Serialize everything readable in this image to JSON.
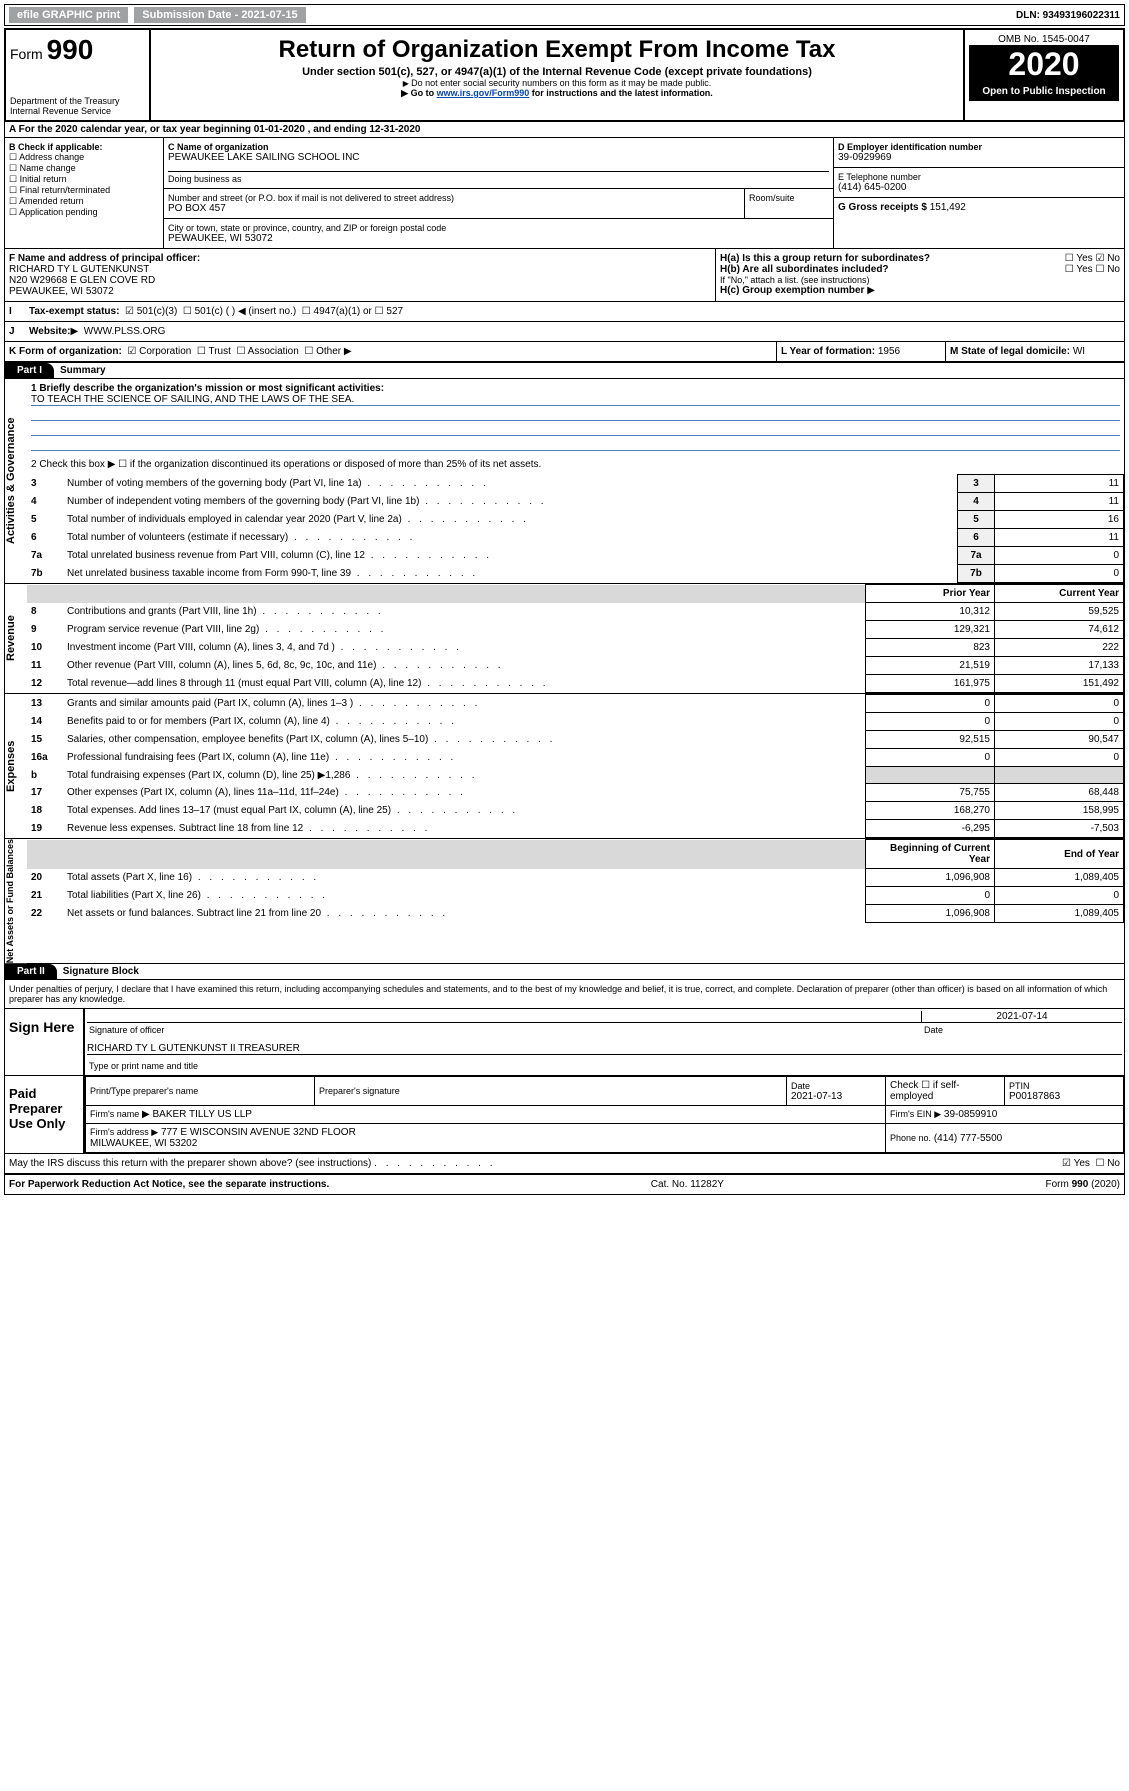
{
  "topbar": {
    "efile": "efile GRAPHIC print",
    "submission": "Submission Date - 2021-07-15",
    "dln": "DLN: 93493196022311"
  },
  "header": {
    "form_label": "Form",
    "form_num": "990",
    "dept": "Department of the Treasury\nInternal Revenue Service",
    "title": "Return of Organization Exempt From Income Tax",
    "subtitle": "Under section 501(c), 527, or 4947(a)(1) of the Internal Revenue Code (except private foundations)",
    "note1": "Do not enter social security numbers on this form as it may be made public.",
    "note2_pre": "Go to ",
    "note2_link": "www.irs.gov/Form990",
    "note2_post": " for instructions and the latest information.",
    "omb": "OMB No. 1545-0047",
    "year": "2020",
    "open": "Open to Public Inspection"
  },
  "secA": "For the 2020 calendar year, or tax year beginning 01-01-2020    , and ending 12-31-2020",
  "colB": {
    "label": "B Check if applicable:",
    "items": [
      "Address change",
      "Name change",
      "Initial return",
      "Final return/terminated",
      "Amended return",
      "Application pending"
    ]
  },
  "colC": {
    "name_lbl": "C Name of organization",
    "name": "PEWAUKEE LAKE SAILING SCHOOL INC",
    "dba_lbl": "Doing business as",
    "addr_lbl": "Number and street (or P.O. box if mail is not delivered to street address)",
    "room_lbl": "Room/suite",
    "addr": "PO BOX 457",
    "city_lbl": "City or town, state or province, country, and ZIP or foreign postal code",
    "city": "PEWAUKEE, WI  53072"
  },
  "colD": {
    "lbl": "D Employer identification number",
    "val": "39-0929969"
  },
  "colE": {
    "lbl": "E Telephone number",
    "val": "(414) 645-0200"
  },
  "colG": {
    "lbl": "G Gross receipts $",
    "val": "151,492"
  },
  "secF": {
    "lbl": "F  Name and address of principal officer:",
    "name": "RICHARD TY L GUTENKUNST",
    "addr1": "N20 W29668 E GLEN COVE RD",
    "addr2": "PEWAUKEE, WI  53072"
  },
  "secH": {
    "a": "H(a)  Is this a group return for subordinates?",
    "a_yes": "Yes",
    "a_no": "No",
    "b": "H(b)  Are all subordinates included?",
    "b_note": "If \"No,\" attach a list. (see instructions)",
    "c": "H(c)  Group exemption number"
  },
  "secI": {
    "lbl": "Tax-exempt status:",
    "opts": [
      "501(c)(3)",
      "501(c) (  ) ◀ (insert no.)",
      "4947(a)(1) or",
      "527"
    ]
  },
  "secJ": {
    "lbl": "Website:",
    "val": "WWW.PLSS.ORG"
  },
  "secK": {
    "lbl": "K Form of organization:",
    "opts": [
      "Corporation",
      "Trust",
      "Association",
      "Other"
    ]
  },
  "secL": {
    "lbl": "L Year of formation:",
    "val": "1956"
  },
  "secM": {
    "lbl": "M State of legal domicile:",
    "val": "WI"
  },
  "part1": {
    "hdr": "Part I",
    "title": "Summary",
    "q1_lbl": "1  Briefly describe the organization's mission or most significant activities:",
    "q1_val": "TO TEACH THE SCIENCE OF SAILING, AND THE LAWS OF THE SEA.",
    "q2": "2   Check this box ▶ ☐  if the organization discontinued its operations or disposed of more than 25% of its net assets.",
    "rows_top": [
      {
        "n": "3",
        "t": "Number of voting members of the governing body (Part VI, line 1a)",
        "v": "11"
      },
      {
        "n": "4",
        "t": "Number of independent voting members of the governing body (Part VI, line 1b)",
        "v": "11"
      },
      {
        "n": "5",
        "t": "Total number of individuals employed in calendar year 2020 (Part V, line 2a)",
        "v": "16"
      },
      {
        "n": "6",
        "t": "Total number of volunteers (estimate if necessary)",
        "v": "11"
      },
      {
        "n": "7a",
        "t": "Total unrelated business revenue from Part VIII, column (C), line 12",
        "v": "0"
      },
      {
        "n": "7b",
        "t": "Net unrelated business taxable income from Form 990-T, line 39",
        "v": "0"
      }
    ],
    "col_prior": "Prior Year",
    "col_curr": "Current Year",
    "rev": [
      {
        "n": "8",
        "t": "Contributions and grants (Part VIII, line 1h)",
        "p": "10,312",
        "c": "59,525"
      },
      {
        "n": "9",
        "t": "Program service revenue (Part VIII, line 2g)",
        "p": "129,321",
        "c": "74,612"
      },
      {
        "n": "10",
        "t": "Investment income (Part VIII, column (A), lines 3, 4, and 7d )",
        "p": "823",
        "c": "222"
      },
      {
        "n": "11",
        "t": "Other revenue (Part VIII, column (A), lines 5, 6d, 8c, 9c, 10c, and 11e)",
        "p": "21,519",
        "c": "17,133"
      },
      {
        "n": "12",
        "t": "Total revenue—add lines 8 through 11 (must equal Part VIII, column (A), line 12)",
        "p": "161,975",
        "c": "151,492"
      }
    ],
    "exp": [
      {
        "n": "13",
        "t": "Grants and similar amounts paid (Part IX, column (A), lines 1–3 )",
        "p": "0",
        "c": "0"
      },
      {
        "n": "14",
        "t": "Benefits paid to or for members (Part IX, column (A), line 4)",
        "p": "0",
        "c": "0"
      },
      {
        "n": "15",
        "t": "Salaries, other compensation, employee benefits (Part IX, column (A), lines 5–10)",
        "p": "92,515",
        "c": "90,547"
      },
      {
        "n": "16a",
        "t": "Professional fundraising fees (Part IX, column (A), line 11e)",
        "p": "0",
        "c": "0"
      },
      {
        "n": "b",
        "t": "Total fundraising expenses (Part IX, column (D), line 25) ▶1,286",
        "p": "__shade__",
        "c": "__shade__"
      },
      {
        "n": "17",
        "t": "Other expenses (Part IX, column (A), lines 11a–11d, 11f–24e)",
        "p": "75,755",
        "c": "68,448"
      },
      {
        "n": "18",
        "t": "Total expenses. Add lines 13–17 (must equal Part IX, column (A), line 25)",
        "p": "168,270",
        "c": "158,995"
      },
      {
        "n": "19",
        "t": "Revenue less expenses. Subtract line 18 from line 12",
        "p": "-6,295",
        "c": "-7,503"
      }
    ],
    "col_beg": "Beginning of Current Year",
    "col_end": "End of Year",
    "net": [
      {
        "n": "20",
        "t": "Total assets (Part X, line 16)",
        "p": "1,096,908",
        "c": "1,089,405"
      },
      {
        "n": "21",
        "t": "Total liabilities (Part X, line 26)",
        "p": "0",
        "c": "0"
      },
      {
        "n": "22",
        "t": "Net assets or fund balances. Subtract line 21 from line 20",
        "p": "1,096,908",
        "c": "1,089,405"
      }
    ],
    "tabs": [
      "Activities & Governance",
      "Revenue",
      "Expenses",
      "Net Assets or Fund Balances"
    ]
  },
  "part2": {
    "hdr": "Part II",
    "title": "Signature Block",
    "decl": "Under penalties of perjury, I declare that I have examined this return, including accompanying schedules and statements, and to the best of my knowledge and belief, it is true, correct, and complete. Declaration of preparer (other than officer) is based on all information of which preparer has any knowledge.",
    "sign_here": "Sign Here",
    "sig_date": "2021-07-14",
    "sig_lbl": "Signature of officer",
    "date_lbl": "Date",
    "officer": "RICHARD TY L GUTENKUNST II  TREASURER",
    "officer_lbl": "Type or print name and title",
    "paid": "Paid Preparer Use Only",
    "prep_name_lbl": "Print/Type preparer's name",
    "prep_sig_lbl": "Preparer's signature",
    "prep_date_lbl": "Date",
    "prep_date": "2021-07-13",
    "check_self": "Check ☐ if self-employed",
    "ptin_lbl": "PTIN",
    "ptin": "P00187863",
    "firm_name_lbl": "Firm's name",
    "firm_name": "BAKER TILLY US LLP",
    "firm_ein_lbl": "Firm's EIN ▶",
    "firm_ein": "39-0859910",
    "firm_addr_lbl": "Firm's address ▶",
    "firm_addr": "777 E WISCONSIN AVENUE 32ND FLOOR\nMILWAUKEE, WI  53202",
    "phone_lbl": "Phone no.",
    "phone": "(414) 777-5500",
    "discuss": "May the IRS discuss this return with the preparer shown above? (see instructions)",
    "d_yes": "Yes",
    "d_no": "No"
  },
  "footer": {
    "pra": "For Paperwork Reduction Act Notice, see the separate instructions.",
    "cat": "Cat. No. 11282Y",
    "form": "Form 990 (2020)"
  }
}
